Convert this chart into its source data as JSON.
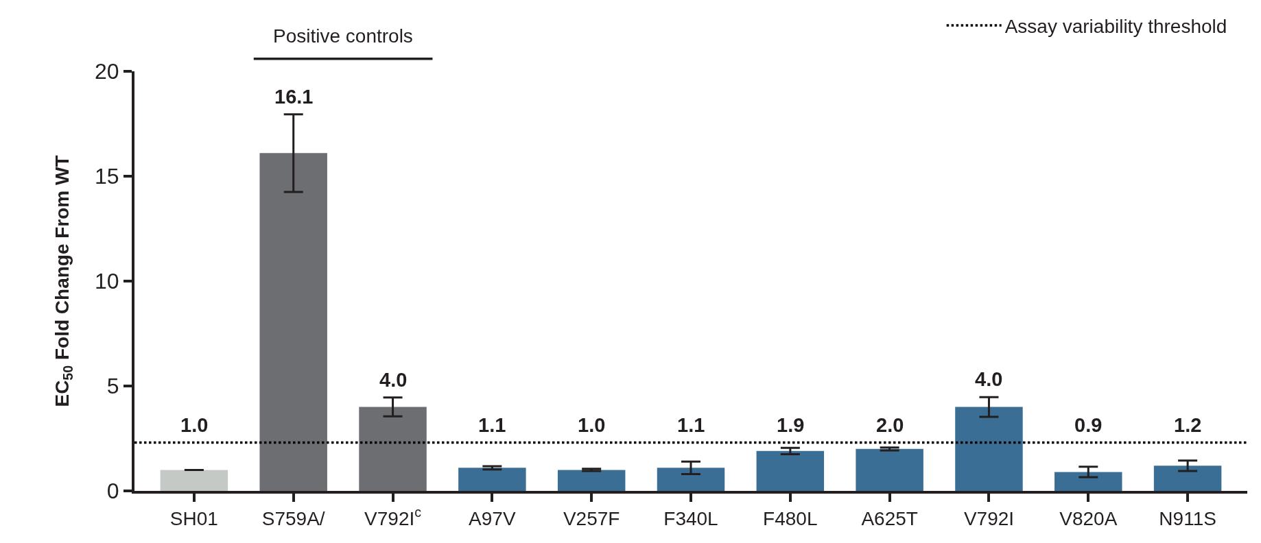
{
  "chart_data": {
    "type": "bar",
    "ylabel": "EC$_{50}$ Fold Change From WT",
    "categories": [
      "SH01",
      "S759A/",
      "V792I$^{c}$",
      "A97V",
      "V257F",
      "F340L",
      "F480L",
      "A625T",
      "V792I",
      "V820A",
      "N911S"
    ],
    "values": [
      1.0,
      16.1,
      4.0,
      1.1,
      1.0,
      1.1,
      1.9,
      2.0,
      4.0,
      0.9,
      1.2
    ],
    "errors": [
      null,
      1.85,
      0.45,
      0.08,
      0.05,
      0.3,
      0.15,
      0.07,
      0.47,
      0.25,
      0.25
    ],
    "colors": [
      "#c5c9c6",
      "#6d6e72",
      "#6d6e72",
      "#3a6e94",
      "#3a6e94",
      "#3a6e94",
      "#3a6e94",
      "#3a6e94",
      "#3a6e94",
      "#3a6e94",
      "#3a6e94"
    ],
    "value_labels": [
      "1.0",
      "16.1",
      "4.0",
      "1.1",
      "1.0",
      "1.1",
      "1.9",
      "2.0",
      "4.0",
      "0.9",
      "1.2"
    ],
    "ylim": [
      0,
      20
    ],
    "yticks": [
      0,
      5,
      10,
      15,
      20
    ],
    "ref_lines": [
      {
        "axis": "y",
        "value": 2.3,
        "label": "Assay variability threshold",
        "color": "#000000",
        "line_style": "dotted"
      }
    ],
    "annotations": [
      "Positive controls"
    ],
    "legend": "top right"
  }
}
